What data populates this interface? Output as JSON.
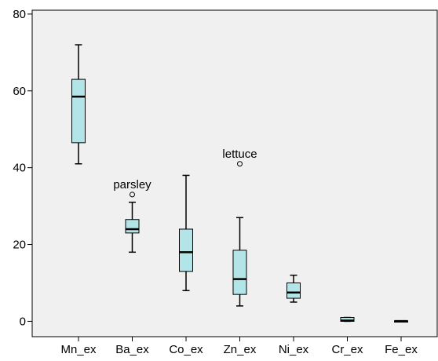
{
  "chart_data": {
    "type": "boxplot",
    "title": "",
    "xlabel": "",
    "ylabel": "",
    "ylim": [
      -4,
      81
    ],
    "yticks": [
      0,
      20,
      40,
      60,
      80
    ],
    "ytick_labels": [
      "0",
      "20",
      "40",
      "60",
      "80"
    ],
    "grid": false,
    "categories": [
      "Mn_ex",
      "Ba_ex",
      "Co_ex",
      "Zn_ex",
      "Ni_ex",
      "Cr_ex",
      "Fe_ex"
    ],
    "boxes": [
      {
        "category": "Mn_ex",
        "min": 41,
        "q1": 46.5,
        "median": 58.5,
        "q3": 63,
        "max": 72
      },
      {
        "category": "Ba_ex",
        "min": 18,
        "q1": 23,
        "median": 24,
        "q3": 26.5,
        "max": 31
      },
      {
        "category": "Co_ex",
        "min": 8,
        "q1": 13,
        "median": 18,
        "q3": 24,
        "max": 38
      },
      {
        "category": "Zn_ex",
        "min": 4,
        "q1": 7,
        "median": 11,
        "q3": 18.5,
        "max": 27
      },
      {
        "category": "Ni_ex",
        "min": 5,
        "q1": 6,
        "median": 7.5,
        "q3": 10,
        "max": 12
      },
      {
        "category": "Cr_ex",
        "min": 0,
        "q1": 0,
        "median": 0.2,
        "q3": 1,
        "max": 1
      },
      {
        "category": "Fe_ex",
        "min": 0,
        "q1": 0,
        "median": 0.05,
        "q3": 0.1,
        "max": 0.1
      }
    ],
    "outliers": [
      {
        "category": "Ba_ex",
        "value": 33,
        "label": "parsley"
      },
      {
        "category": "Zn_ex",
        "value": 41,
        "label": "lettuce"
      }
    ],
    "colors": {
      "box_fill": "#b3e5e8",
      "plot_background": "#f0f0f0",
      "axis": "#000000"
    }
  }
}
